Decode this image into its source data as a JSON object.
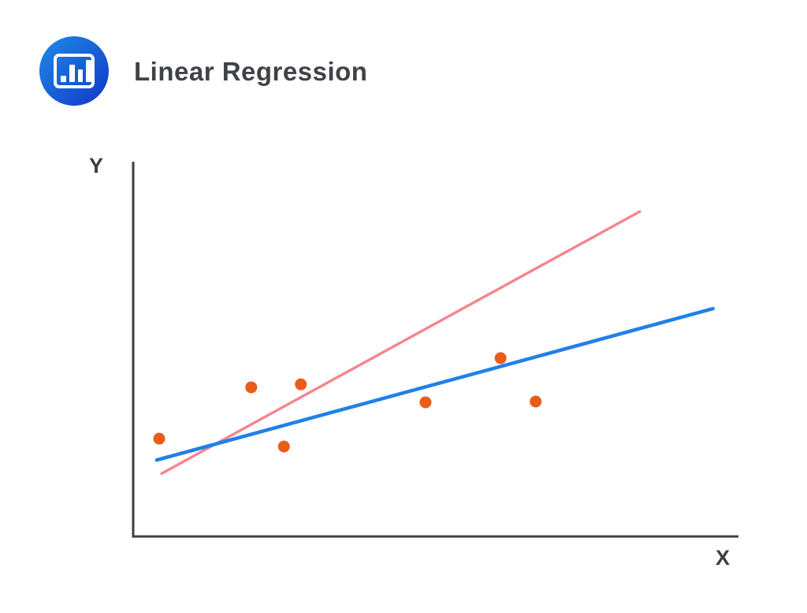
{
  "header": {
    "title": "Linear Regression",
    "logo_icon": "bar-chart-icon",
    "logo_gradient": [
      "#1E8BE8",
      "#1237C5"
    ]
  },
  "chart_data": {
    "type": "scatter",
    "title": "Linear Regression",
    "xlabel": "X",
    "ylabel": "Y",
    "axes_numeric": false,
    "grid": false,
    "axis_color": "#3F3F3F",
    "point_color": "#E85D1A",
    "point_radius_px": 7.5,
    "points_pct": [
      {
        "x": 4.3,
        "y": 26.1
      },
      {
        "x": 19.5,
        "y": 39.8
      },
      {
        "x": 27.7,
        "y": 40.6
      },
      {
        "x": 24.9,
        "y": 24.0
      },
      {
        "x": 48.3,
        "y": 35.8
      },
      {
        "x": 60.7,
        "y": 47.6
      },
      {
        "x": 66.5,
        "y": 36.0
      }
    ],
    "lines": [
      {
        "name": "candidate-line-pink",
        "color": "#F5858D",
        "width": 3.4,
        "x1": 4.7,
        "y1": 16.8,
        "x2": 83.7,
        "y2": 86.7
      },
      {
        "name": "best-fit-line-blue",
        "color": "#2180E8",
        "width": 4.5,
        "x1": 3.9,
        "y1": 20.4,
        "x2": 95.8,
        "y2": 60.8
      }
    ]
  }
}
